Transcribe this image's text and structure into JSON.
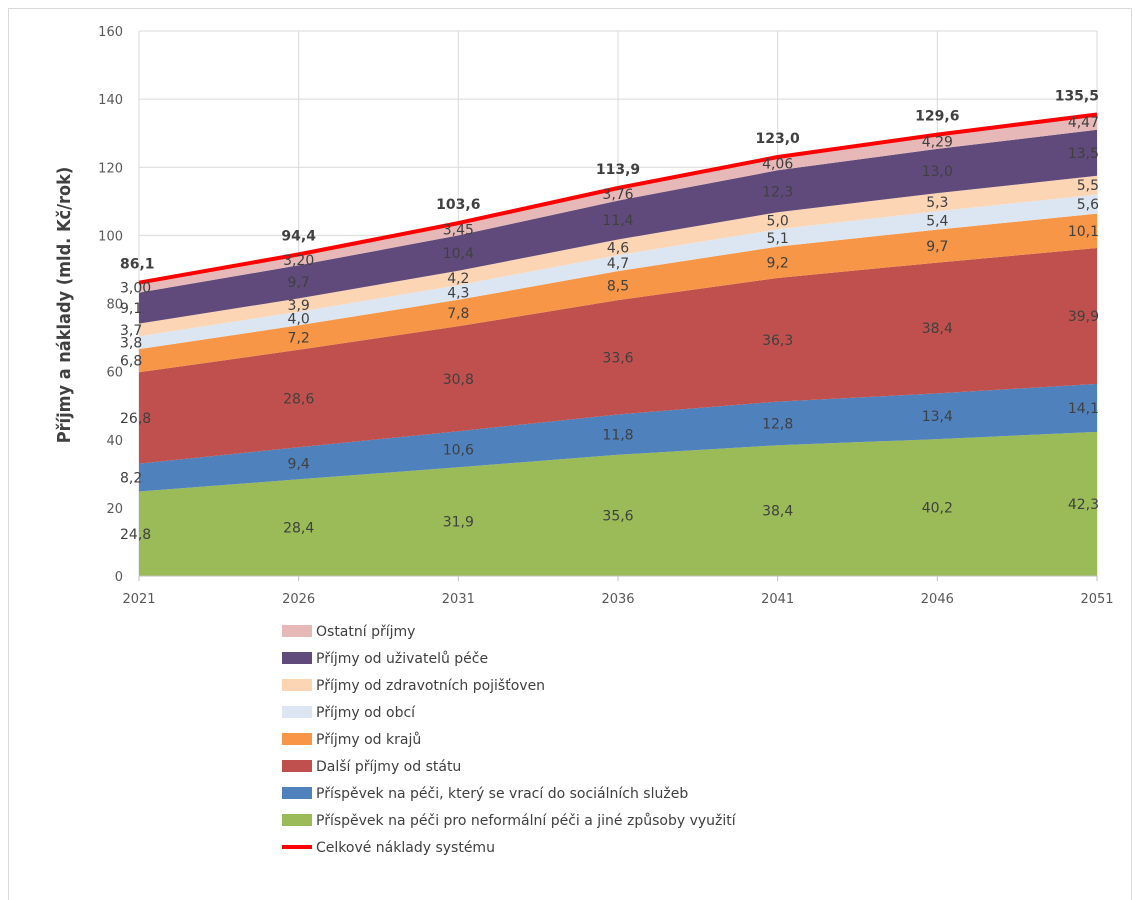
{
  "chart_data": {
    "type": "area",
    "title": "",
    "xlabel": "",
    "ylabel": "Příjmy a náklady (mld. Kč/rok)",
    "ylim": [
      0,
      160
    ],
    "yticks": [
      "0",
      "20",
      "40",
      "60",
      "80",
      "100",
      "120",
      "140",
      "160"
    ],
    "grid": true,
    "stacked": true,
    "legend_position": "bottom",
    "x": [
      "2021",
      "2026",
      "2031",
      "2036",
      "2041",
      "2046",
      "2051"
    ],
    "series": [
      {
        "name": "Příspěvek na péči pro neformální péči a jiné způsoby využití",
        "color": "#9bbb59",
        "values": [
          24.8,
          28.4,
          31.9,
          35.6,
          38.4,
          40.2,
          42.3
        ],
        "labels": [
          "24,8",
          "28,4",
          "31,9",
          "35,6",
          "38,4",
          "40,2",
          "42,3"
        ]
      },
      {
        "name": "Příspěvek na péči, který se vrací do  sociálních služeb",
        "color": "#4f81bd",
        "values": [
          8.2,
          9.4,
          10.6,
          11.8,
          12.8,
          13.4,
          14.1
        ],
        "labels": [
          "8,2",
          "9,4",
          "10,6",
          "11,8",
          "12,8",
          "13,4",
          "14,1"
        ]
      },
      {
        "name": "Další příjmy od státu",
        "color": "#c0504d",
        "values": [
          26.8,
          28.6,
          30.8,
          33.6,
          36.3,
          38.4,
          39.9
        ],
        "labels": [
          "26,8",
          "28,6",
          "30,8",
          "33,6",
          "36,3",
          "38,4",
          "39,9"
        ]
      },
      {
        "name": "Příjmy od krajů",
        "color": "#f79646",
        "values": [
          6.8,
          7.2,
          7.8,
          8.5,
          9.2,
          9.7,
          10.1
        ],
        "labels": [
          "6,8",
          "7,2",
          "7,8",
          "8,5",
          "9,2",
          "9,7",
          "10,1"
        ]
      },
      {
        "name": "Příjmy od obcí",
        "color": "#dce6f2",
        "values": [
          3.8,
          4.0,
          4.3,
          4.7,
          5.1,
          5.4,
          5.6
        ],
        "labels": [
          "3,8",
          "4,0",
          "4,3",
          "4,7",
          "5,1",
          "5,4",
          "5,6"
        ]
      },
      {
        "name": "Příjmy od zdravotních pojišťoven",
        "color": "#fcd5b5",
        "values": [
          3.7,
          3.9,
          4.2,
          4.6,
          5.0,
          5.3,
          5.5
        ],
        "labels": [
          "3,7",
          "3,9",
          "4,2",
          "4,6",
          "5,0",
          "5,3",
          "5,5"
        ]
      },
      {
        "name": "Příjmy od uživatelů péče",
        "color": "#604a7b",
        "values": [
          9.1,
          9.7,
          10.4,
          11.4,
          12.3,
          13.0,
          13.5
        ],
        "labels": [
          "9,1",
          "9,7",
          "10,4",
          "11,4",
          "12,3",
          "13,0",
          "13,5"
        ]
      },
      {
        "name": "Ostatní příjmy",
        "color": "#e6b9b8",
        "values": [
          3.0,
          3.2,
          3.45,
          3.76,
          4.06,
          4.29,
          4.47
        ],
        "labels": [
          "3,00",
          "3,20",
          "3,45",
          "3,76",
          "4,06",
          "4,29",
          "4,47"
        ]
      }
    ],
    "total": {
      "name": "Celkové náklady systému",
      "color": "#ff0000",
      "values": [
        86.1,
        94.4,
        103.6,
        113.9,
        123.0,
        129.6,
        135.5
      ],
      "labels": [
        "86,1",
        "94,4",
        "103,6",
        "113,9",
        "123,0",
        "129,6",
        "135,5"
      ]
    }
  }
}
